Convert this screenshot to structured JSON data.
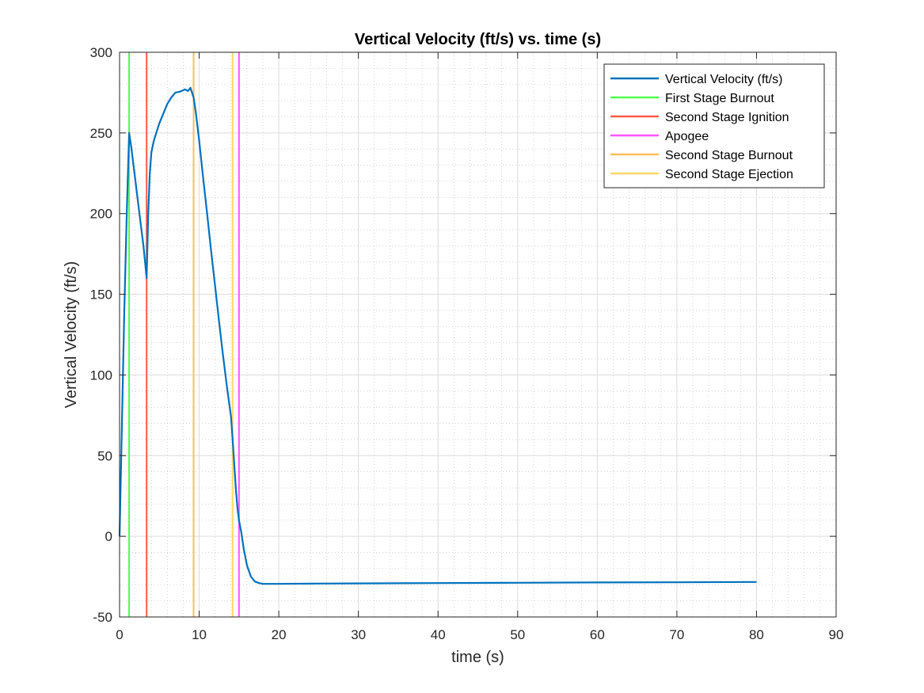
{
  "chart_data": {
    "type": "line",
    "title": "Vertical Velocity (ft/s) vs. time (s)",
    "xlabel": "time (s)",
    "ylabel": "Vertical Velocity (ft/s)",
    "xlim": [
      0,
      90
    ],
    "ylim": [
      -50,
      300
    ],
    "xticks": [
      0,
      10,
      20,
      30,
      40,
      50,
      60,
      70,
      80,
      90
    ],
    "yticks": [
      -50,
      0,
      50,
      100,
      150,
      200,
      250,
      300
    ],
    "x_minor_step": 2,
    "y_minor_step": 10,
    "grid": true,
    "minor_grid": true,
    "legend_position": "top-right",
    "series": [
      {
        "name": "Vertical Velocity (ft/s)",
        "color": "#0072BD",
        "x": [
          0,
          0.3,
          0.6,
          0.9,
          1.2,
          1.5,
          2.0,
          2.5,
          3.0,
          3.4,
          3.6,
          3.8,
          4.0,
          4.3,
          4.6,
          5.0,
          5.5,
          6.0,
          6.5,
          7.0,
          7.5,
          7.8,
          8.2,
          8.6,
          8.9,
          9.1,
          9.3,
          9.6,
          10.0,
          10.5,
          11.0,
          11.5,
          12.0,
          12.5,
          13.0,
          13.5,
          14.0,
          14.2,
          14.4,
          14.6,
          14.8,
          15.0,
          15.3,
          15.6,
          16.0,
          16.5,
          17.0,
          17.5,
          18.0,
          19.0,
          20.0,
          25.0,
          30.0,
          40.0,
          50.0,
          60.0,
          70.0,
          80.0
        ],
        "y": [
          0,
          70,
          140,
          200,
          250,
          240,
          220,
          200,
          180,
          160,
          200,
          225,
          238,
          245,
          250,
          256,
          262,
          268,
          272,
          275,
          275.5,
          276,
          277,
          276,
          278,
          275,
          272,
          262,
          245,
          222,
          200,
          177,
          155,
          133,
          112,
          92,
          74,
          60,
          45,
          30,
          18,
          10,
          2,
          -8,
          -18,
          -25,
          -28,
          -29,
          -29.5,
          -29.5,
          -29.5,
          -29.3,
          -29.2,
          -29,
          -28.8,
          -28.6,
          -28.5,
          -28.3
        ]
      },
      {
        "name": "First Stage Burnout",
        "color": "#4DFF4D",
        "vline_x": 1.2
      },
      {
        "name": "Second Stage Ignition",
        "color": "#FF5A4D",
        "vline_x": 3.4
      },
      {
        "name": "Apogee",
        "color": "#FF55FF",
        "vline_x": 15.0
      },
      {
        "name": "Second Stage Burnout",
        "color": "#FFBD5A",
        "vline_x": 9.3
      },
      {
        "name": "Second Stage Ejection",
        "color": "#FFD966",
        "vline_x": 14.2
      }
    ]
  }
}
